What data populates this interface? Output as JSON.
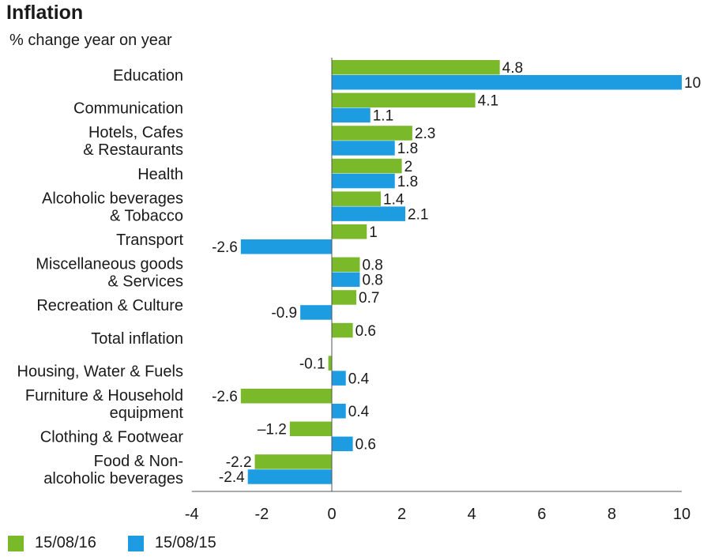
{
  "chart_data": {
    "type": "bar",
    "orientation": "horizontal",
    "title": "Inflation",
    "subtitle": "% change year on year",
    "categories": [
      [
        "Education"
      ],
      [
        "Communication"
      ],
      [
        "Hotels, Cafes",
        "& Restaurants"
      ],
      [
        "Health"
      ],
      [
        "Alcoholic beverages",
        "& Tobacco"
      ],
      [
        "Transport"
      ],
      [
        "Miscellaneous goods",
        "& Services"
      ],
      [
        "Recreation & Culture"
      ],
      [
        "Total inflation"
      ],
      [
        "Housing, Water & Fuels"
      ],
      [
        "Furniture & Household",
        "equipment"
      ],
      [
        "Clothing & Footwear"
      ],
      [
        "Food & Non-",
        "alcoholic beverages"
      ]
    ],
    "series": [
      {
        "name": "15/08/16",
        "color": "#7ab929",
        "values": [
          4.8,
          4.1,
          2.3,
          2,
          1.4,
          1,
          0.8,
          0.7,
          0.6,
          -0.1,
          -2.6,
          -1.2,
          -2.2
        ],
        "labels": [
          "4.8",
          "4.1",
          "2.3",
          "2",
          "1.4",
          "1",
          "0.8",
          "0.7",
          "0.6",
          "-0.1",
          "-2.6",
          "–1.2",
          "-2.2"
        ]
      },
      {
        "name": "15/08/15",
        "color": "#1e9ce2",
        "values": [
          10,
          1.1,
          1.8,
          1.8,
          2.1,
          -2.6,
          0.8,
          -0.9,
          null,
          0.4,
          0.4,
          0.6,
          -2.4
        ],
        "labels": [
          "10",
          "1.1",
          "1.8",
          "1.8",
          "2.1",
          "-2.6",
          "0.8",
          "-0.9",
          null,
          "0.4",
          "0.4",
          "0.6",
          "-2.4"
        ]
      }
    ],
    "xlim": [
      -4,
      10
    ],
    "xticks": [
      "-4",
      "-2",
      "0",
      "2",
      "4",
      "6",
      "8",
      "10"
    ],
    "grid": false,
    "legend_position": "bottom-left"
  }
}
